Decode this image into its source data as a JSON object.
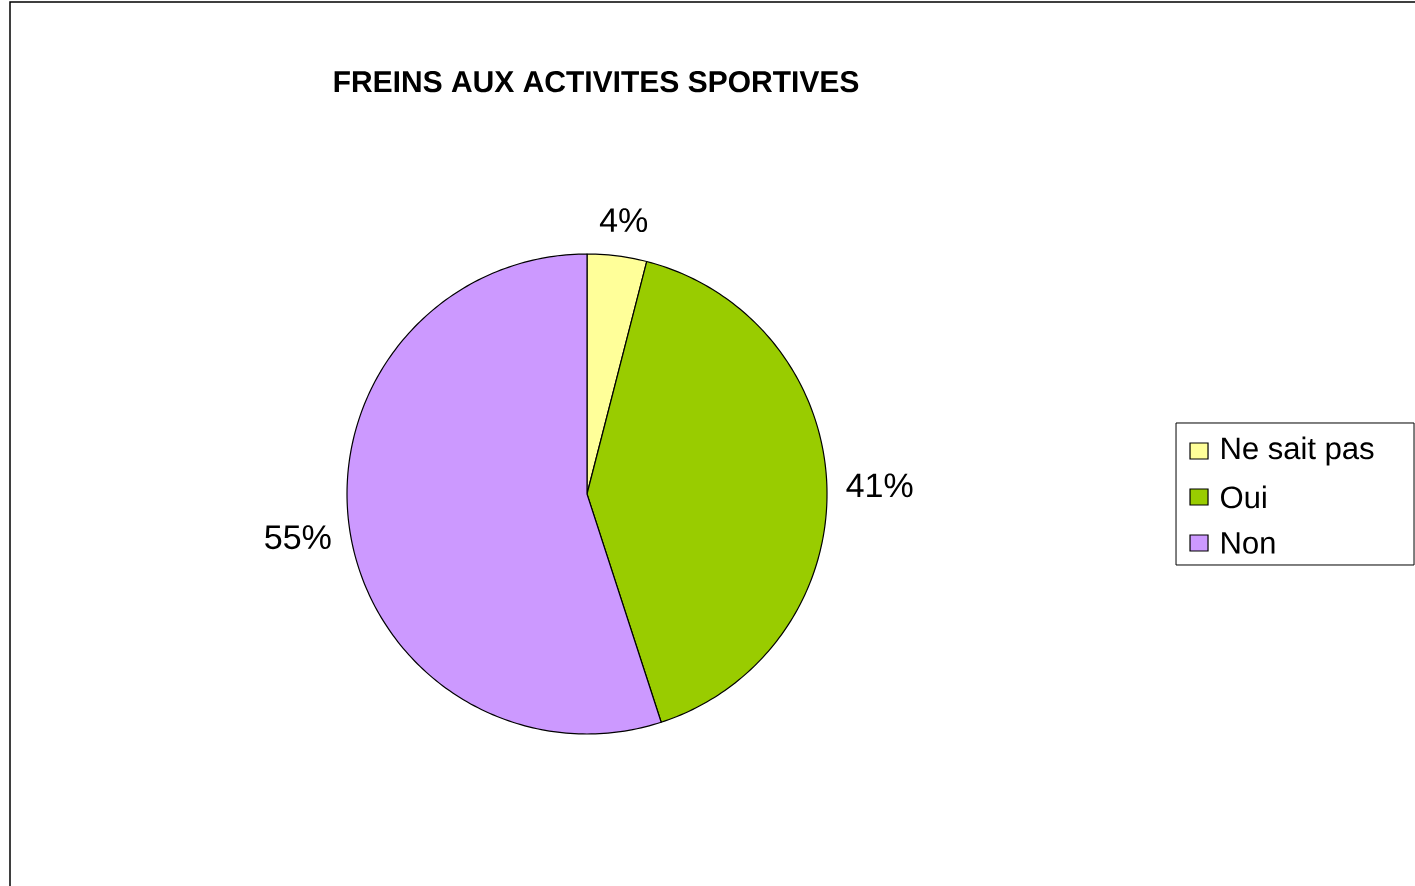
{
  "chart_data": {
    "type": "pie",
    "title": "FREINS AUX ACTIVITES SPORTIVES",
    "categories": [
      "Ne sait pas",
      "Oui",
      "Non"
    ],
    "values": [
      4,
      41,
      55
    ],
    "colors": [
      "#ffff99",
      "#99cc00",
      "#cc99ff"
    ],
    "value_labels": [
      "4%",
      "41%",
      "55%"
    ],
    "legend": "right"
  }
}
